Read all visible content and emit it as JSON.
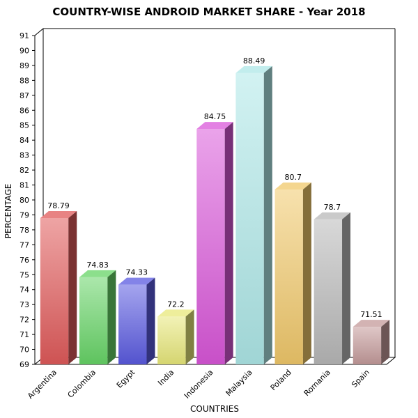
{
  "chart_data": {
    "type": "bar",
    "title": "COUNTRY-WISE ANDROID MARKET SHARE - Year 2018",
    "xlabel": "COUNTRIES",
    "ylabel": "PERCENTAGE",
    "ylim": [
      69,
      91
    ],
    "ytick_step": 1,
    "grid": true,
    "legend": "none",
    "categories": [
      "Argentina",
      "Colombia",
      "Egypt",
      "India",
      "Indonesia",
      "Malaysia",
      "Poland",
      "Romania",
      "Spain"
    ],
    "values": [
      78.79,
      74.83,
      74.33,
      72.2,
      84.75,
      88.49,
      80.7,
      78.7,
      71.51
    ],
    "value_labels": [
      "78.79",
      "74.83",
      "74.33",
      "72.2",
      "84.75",
      "88.49",
      "80.7",
      "78.7",
      "71.51"
    ],
    "colors": [
      "#e05a5a",
      "#66d466",
      "#5a5ae0",
      "#e8e87a",
      "#d957d9",
      "#aee7e7",
      "#f0c86a",
      "#b8b8b8",
      "#c49a9a"
    ]
  }
}
